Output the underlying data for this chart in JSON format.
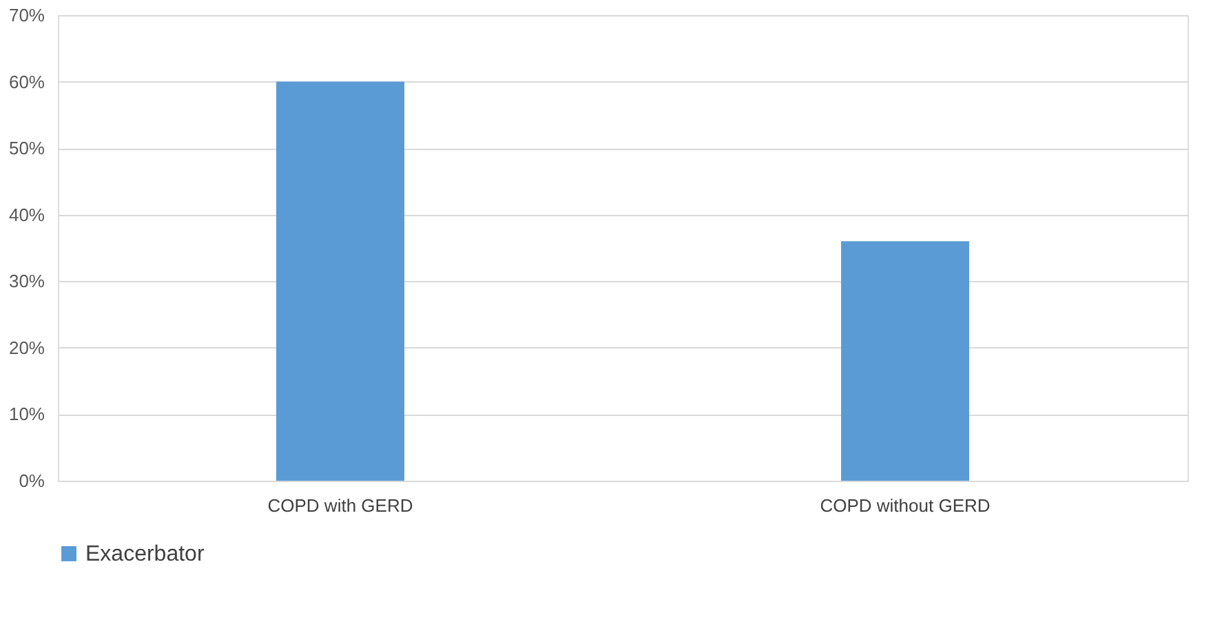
{
  "chart_data": {
    "type": "bar",
    "categories": [
      "COPD with GERD",
      "COPD without GERD"
    ],
    "series": [
      {
        "name": "Exacerbator",
        "color": "#5b9bd5",
        "values": [
          60,
          36
        ]
      }
    ],
    "ylim": [
      0,
      70
    ],
    "yticks": [
      {
        "value": 0,
        "label": "0%"
      },
      {
        "value": 10,
        "label": "10%"
      },
      {
        "value": 20,
        "label": "20%"
      },
      {
        "value": 30,
        "label": "30%"
      },
      {
        "value": 40,
        "label": "40%"
      },
      {
        "value": 50,
        "label": "50%"
      },
      {
        "value": 60,
        "label": "60%"
      },
      {
        "value": 70,
        "label": "70%"
      }
    ],
    "grid": "y",
    "legend": "bottom"
  }
}
